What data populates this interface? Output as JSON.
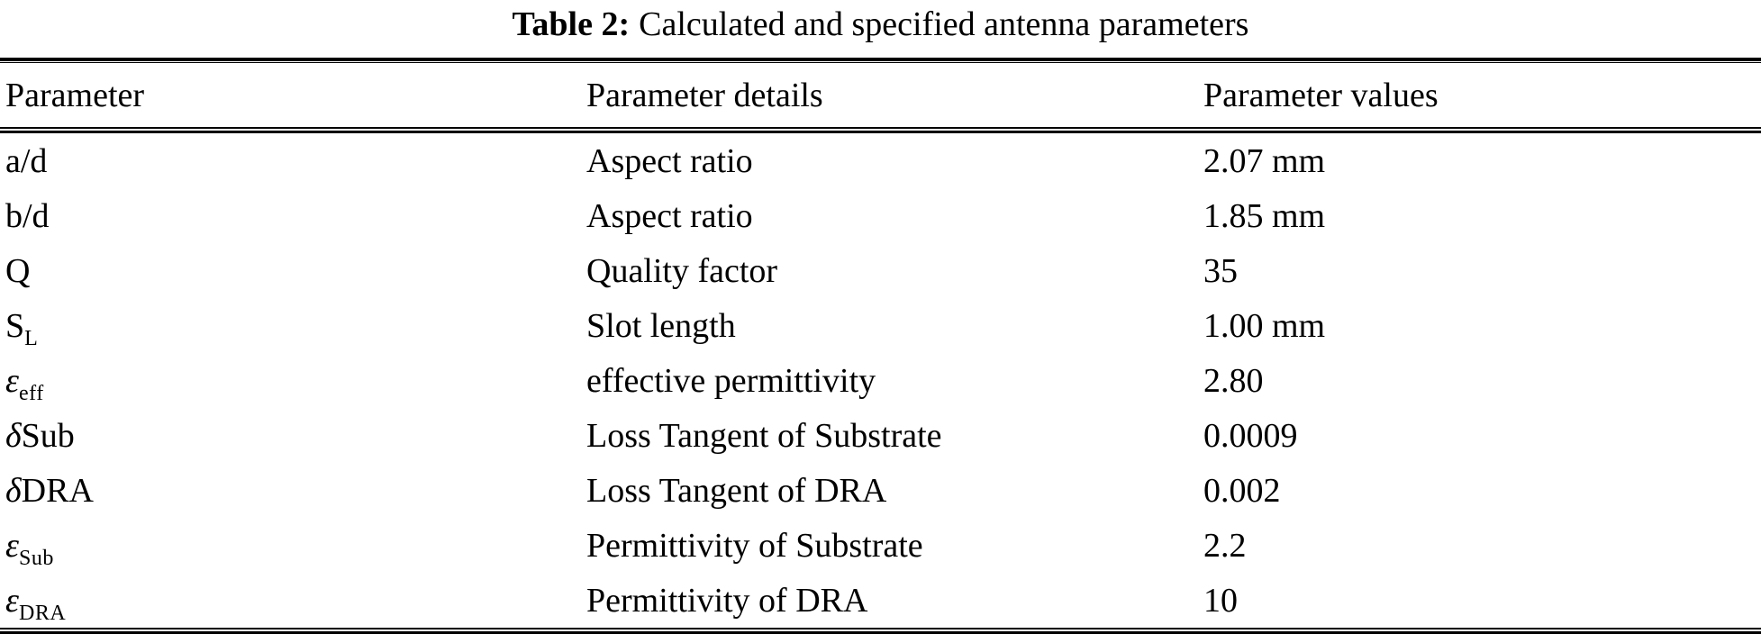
{
  "caption": {
    "label": "Table 2:",
    "text": "Calculated and specified antenna parameters"
  },
  "table": {
    "columns": [
      "Parameter",
      "Parameter details",
      "Parameter values"
    ],
    "rows": [
      {
        "param": {
          "sym": "a/d",
          "italic": false,
          "sub": "",
          "suffix": ""
        },
        "details": "Aspect ratio",
        "value": "2.07 mm"
      },
      {
        "param": {
          "sym": "b/d",
          "italic": false,
          "sub": "",
          "suffix": ""
        },
        "details": "Aspect ratio",
        "value": "1.85 mm"
      },
      {
        "param": {
          "sym": "Q",
          "italic": false,
          "sub": "",
          "suffix": ""
        },
        "details": "Quality factor",
        "value": "35"
      },
      {
        "param": {
          "sym": "S",
          "italic": false,
          "sub": "L",
          "suffix": ""
        },
        "details": "Slot length",
        "value": "1.00 mm"
      },
      {
        "param": {
          "sym": "ε",
          "italic": true,
          "sub": "eff",
          "suffix": ""
        },
        "details": "effective permittivity",
        "value": "2.80"
      },
      {
        "param": {
          "sym": "δ",
          "italic": true,
          "sub": "",
          "suffix": "Sub"
        },
        "details": "Loss Tangent of Substrate",
        "value": "0.0009"
      },
      {
        "param": {
          "sym": "δ",
          "italic": true,
          "sub": "",
          "suffix": "DRA"
        },
        "details": "Loss Tangent of DRA",
        "value": "0.002"
      },
      {
        "param": {
          "sym": "ε",
          "italic": true,
          "sub": "Sub",
          "suffix": ""
        },
        "details": "Permittivity of Substrate",
        "value": "2.2"
      },
      {
        "param": {
          "sym": "ε",
          "italic": true,
          "sub": "DRA",
          "suffix": ""
        },
        "details": "Permittivity of DRA",
        "value": "10"
      }
    ]
  },
  "colors": {
    "text": "#000000",
    "background": "#ffffff",
    "rule": "#000000"
  }
}
